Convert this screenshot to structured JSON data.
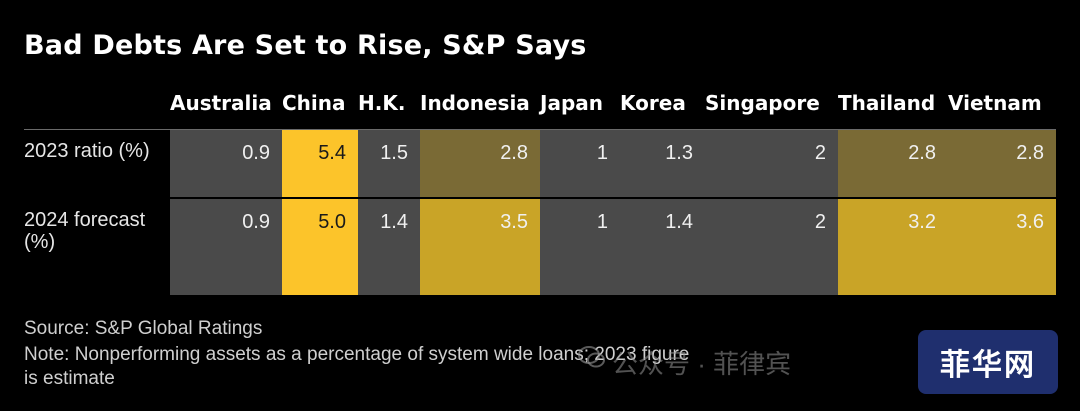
{
  "title": "Bad Debts Are Set to Rise, S&P Says",
  "chart_data": {
    "type": "table",
    "title": "Bad Debts Are Set to Rise, S&P Says",
    "columns": [
      "Australia",
      "China",
      "H.K.",
      "Indonesia",
      "Japan",
      "Korea",
      "Singapore",
      "Thailand",
      "Vietnam"
    ],
    "rows": [
      {
        "label": "2023 ratio (%)",
        "values": [
          "0.9",
          "5.4",
          "1.5",
          "2.8",
          "1",
          "1.3",
          "2",
          "2.8",
          "2.8"
        ]
      },
      {
        "label": "2024 forecast (%)",
        "values": [
          "0.9",
          "5.0",
          "1.4",
          "3.5",
          "1",
          "1.4",
          "2",
          "3.2",
          "3.6"
        ]
      }
    ],
    "color_scale": {
      "low": "#4a4a4a",
      "mid": "#7a6a35",
      "high": "#c9a427",
      "max": "#fcc42a"
    }
  },
  "footer": {
    "source": "Source: S&P Global Ratings",
    "note_line1": "Note: Nonperforming assets as a percentage of system wide loans; 2023 figure",
    "note_line2": "is estimate"
  },
  "watermark": {
    "text": "公众号 · 菲律宾",
    "icon": "wechat-icon"
  },
  "badge": {
    "text": "菲华网"
  }
}
